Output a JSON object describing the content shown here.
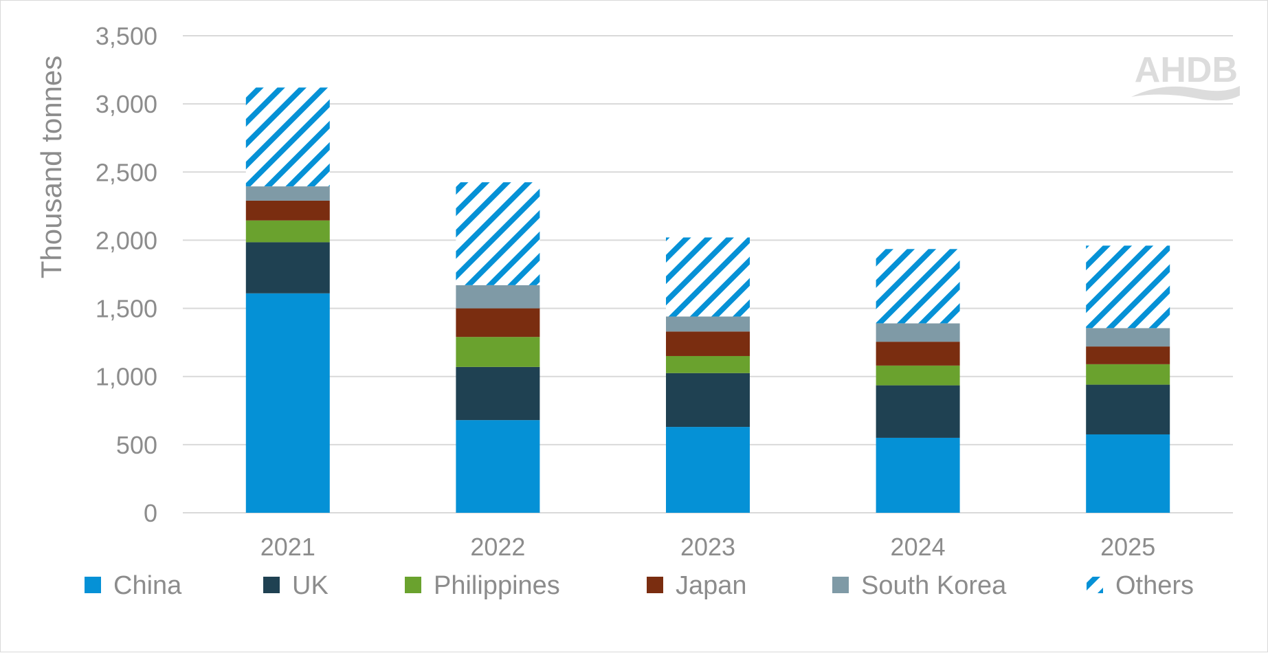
{
  "chart_data": {
    "type": "bar",
    "stacked": true,
    "ylabel": "Thousand tonnes",
    "xlabel": "",
    "ylim": [
      0,
      3500
    ],
    "yticks": [
      0,
      500,
      1000,
      1500,
      2000,
      2500,
      3000,
      3500
    ],
    "ytick_labels": [
      "0",
      "500",
      "1,000",
      "1,500",
      "2,000",
      "2,500",
      "3,000",
      "3,500"
    ],
    "grid": true,
    "categories": [
      "2021",
      "2022",
      "2023",
      "2024",
      "2025"
    ],
    "series": [
      {
        "name": "China",
        "color": "#0591d6",
        "pattern": "solid",
        "values": [
          1610,
          680,
          630,
          550,
          575
        ]
      },
      {
        "name": "UK",
        "color": "#1f4152",
        "pattern": "solid",
        "values": [
          375,
          390,
          395,
          385,
          365
        ]
      },
      {
        "name": "Philippines",
        "color": "#6aa22e",
        "pattern": "solid",
        "values": [
          160,
          220,
          125,
          145,
          150
        ]
      },
      {
        "name": "Japan",
        "color": "#7a2d10",
        "pattern": "solid",
        "values": [
          145,
          210,
          180,
          175,
          130
        ]
      },
      {
        "name": "South Korea",
        "color": "#7f9aa6",
        "pattern": "solid",
        "values": [
          105,
          170,
          110,
          135,
          135
        ]
      },
      {
        "name": "Others",
        "color": "#0591d6",
        "pattern": "hatched",
        "values": [
          725,
          755,
          580,
          545,
          605
        ]
      }
    ],
    "legend_position": "bottom"
  },
  "logo": {
    "text": "AHDB"
  }
}
